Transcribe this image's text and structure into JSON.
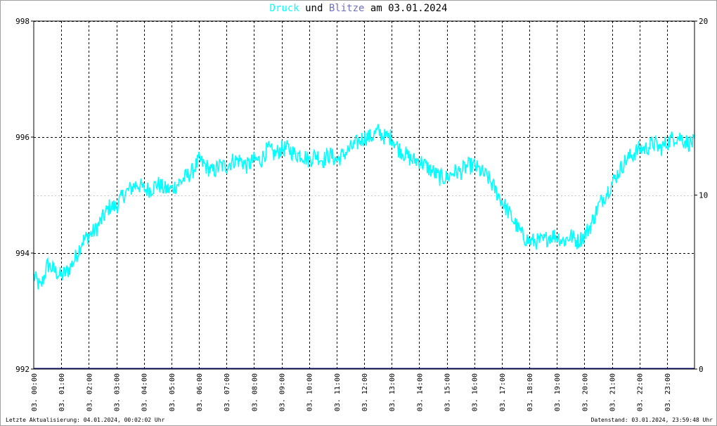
{
  "title": {
    "series1": "Druck",
    "conj": " und ",
    "series2": "Blitze",
    "suffix": " am 03.01.2024"
  },
  "footer": {
    "left": "Letzte Aktualisierung: 04.01.2024, 00:02:02 Uhr",
    "right": "Datenstand: 03.01.2024, 23:59:48 Uhr"
  },
  "colors": {
    "druck": "#00ffff",
    "blitze": "#000080",
    "grid": "#000000"
  },
  "chart_data": {
    "type": "line",
    "x_tick_labels": [
      "03. 00:00",
      "03. 01:00",
      "03. 02:00",
      "03. 03:00",
      "03. 04:00",
      "03. 05:00",
      "03. 06:00",
      "03. 07:00",
      "03. 08:00",
      "03. 09:00",
      "03. 10:00",
      "03. 11:00",
      "03. 12:00",
      "03. 13:00",
      "03. 14:00",
      "03. 15:00",
      "03. 16:00",
      "03. 17:00",
      "03. 18:00",
      "03. 19:00",
      "03. 20:00",
      "03. 21:00",
      "03. 22:00",
      "03. 23:00"
    ],
    "xlim": [
      0,
      24
    ],
    "y_left": {
      "ylim": [
        992,
        998
      ],
      "ticks": [
        "998",
        "996",
        "994",
        "992"
      ]
    },
    "y_right": {
      "ylim": [
        0,
        20
      ],
      "ticks": [
        "20",
        "10",
        "0"
      ]
    },
    "grid": true,
    "series": [
      {
        "name": "Druck",
        "axis": "left",
        "x": [
          0.0,
          0.25,
          0.5,
          0.75,
          1.0,
          1.25,
          1.5,
          1.75,
          2.0,
          2.25,
          2.5,
          2.75,
          3.0,
          3.25,
          3.5,
          3.75,
          4.0,
          4.25,
          4.5,
          4.75,
          5.0,
          5.25,
          5.5,
          5.75,
          6.0,
          6.25,
          6.5,
          6.75,
          7.0,
          7.25,
          7.5,
          7.75,
          8.0,
          8.25,
          8.5,
          8.75,
          9.0,
          9.25,
          9.5,
          9.75,
          10.0,
          10.25,
          10.5,
          10.75,
          11.0,
          11.25,
          11.5,
          11.75,
          12.0,
          12.25,
          12.5,
          12.75,
          13.0,
          13.25,
          13.5,
          13.75,
          14.0,
          14.25,
          14.5,
          14.75,
          15.0,
          15.25,
          15.5,
          15.75,
          16.0,
          16.25,
          16.5,
          16.75,
          17.0,
          17.25,
          17.5,
          17.75,
          18.0,
          18.25,
          18.5,
          18.75,
          19.0,
          19.25,
          19.5,
          19.75,
          20.0,
          20.25,
          20.5,
          20.75,
          21.0,
          21.25,
          21.5,
          21.75,
          22.0,
          22.25,
          22.5,
          22.75,
          23.0,
          23.25,
          23.5,
          23.75,
          24.0
        ],
        "values": [
          993.6,
          993.4,
          993.8,
          993.7,
          993.6,
          993.7,
          993.9,
          994.2,
          994.3,
          994.4,
          994.6,
          994.8,
          994.8,
          995.0,
          995.1,
          995.2,
          995.1,
          995.1,
          995.2,
          995.1,
          995.1,
          995.2,
          995.3,
          995.4,
          995.6,
          995.5,
          995.4,
          995.5,
          995.5,
          995.6,
          995.6,
          995.5,
          995.6,
          995.6,
          995.8,
          995.7,
          995.8,
          995.8,
          995.7,
          995.7,
          995.6,
          995.7,
          995.6,
          995.7,
          995.6,
          995.7,
          995.8,
          995.9,
          996.0,
          996.0,
          996.1,
          996.0,
          996.0,
          995.8,
          995.7,
          995.6,
          995.6,
          995.5,
          995.4,
          995.3,
          995.3,
          995.4,
          995.4,
          995.5,
          995.5,
          995.4,
          995.3,
          995.1,
          994.9,
          994.7,
          994.5,
          994.3,
          994.2,
          994.2,
          994.2,
          994.3,
          994.3,
          994.2,
          994.3,
          994.2,
          994.3,
          994.5,
          994.8,
          995.0,
          995.2,
          995.4,
          995.6,
          995.7,
          995.8,
          995.8,
          995.9,
          995.8,
          995.9,
          996.0,
          996.0,
          995.9,
          995.9
        ]
      },
      {
        "name": "Blitze",
        "axis": "right",
        "x": [
          0,
          24
        ],
        "values": [
          0,
          0
        ]
      }
    ]
  }
}
